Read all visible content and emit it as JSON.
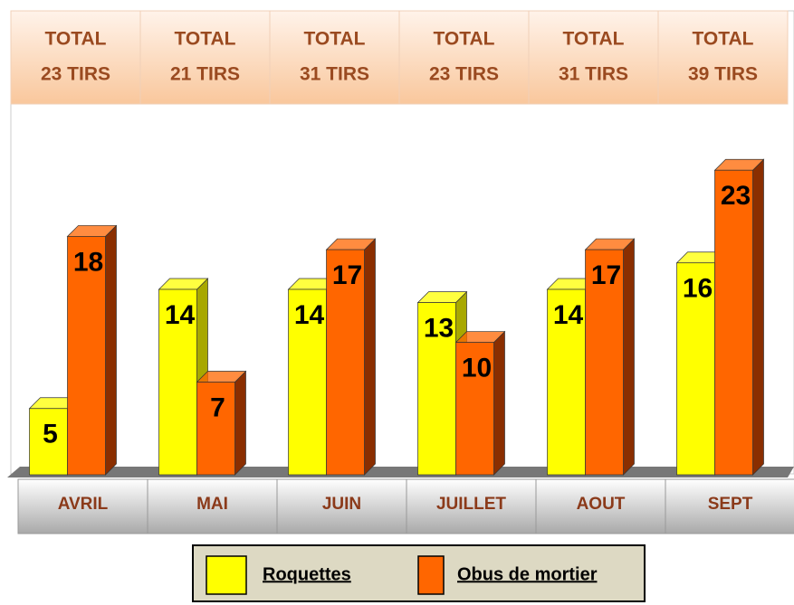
{
  "chart_data": {
    "type": "bar3d",
    "categories": [
      "AVRIL",
      "MAI",
      "JUIN",
      "JUILLET",
      "AOUT",
      "SEPT"
    ],
    "totals": [
      [
        "TOTAL",
        "23 TIRS"
      ],
      [
        "TOTAL",
        "21 TIRS"
      ],
      [
        "TOTAL",
        "31 TIRS"
      ],
      [
        "TOTAL",
        "23 TIRS"
      ],
      [
        "TOTAL",
        "31 TIRS"
      ],
      [
        "TOTAL",
        "39 TIRS"
      ]
    ],
    "series": [
      {
        "name": "Roquettes",
        "color": "#ffff00",
        "side_color": "#a8a800",
        "values": [
          5,
          14,
          14,
          13,
          14,
          16
        ]
      },
      {
        "name": "Obus de mortier",
        "color": "#ff6600",
        "side_color": "#8a2e00",
        "values": [
          18,
          7,
          17,
          10,
          17,
          23
        ]
      }
    ],
    "ylim": [
      0,
      28
    ]
  }
}
